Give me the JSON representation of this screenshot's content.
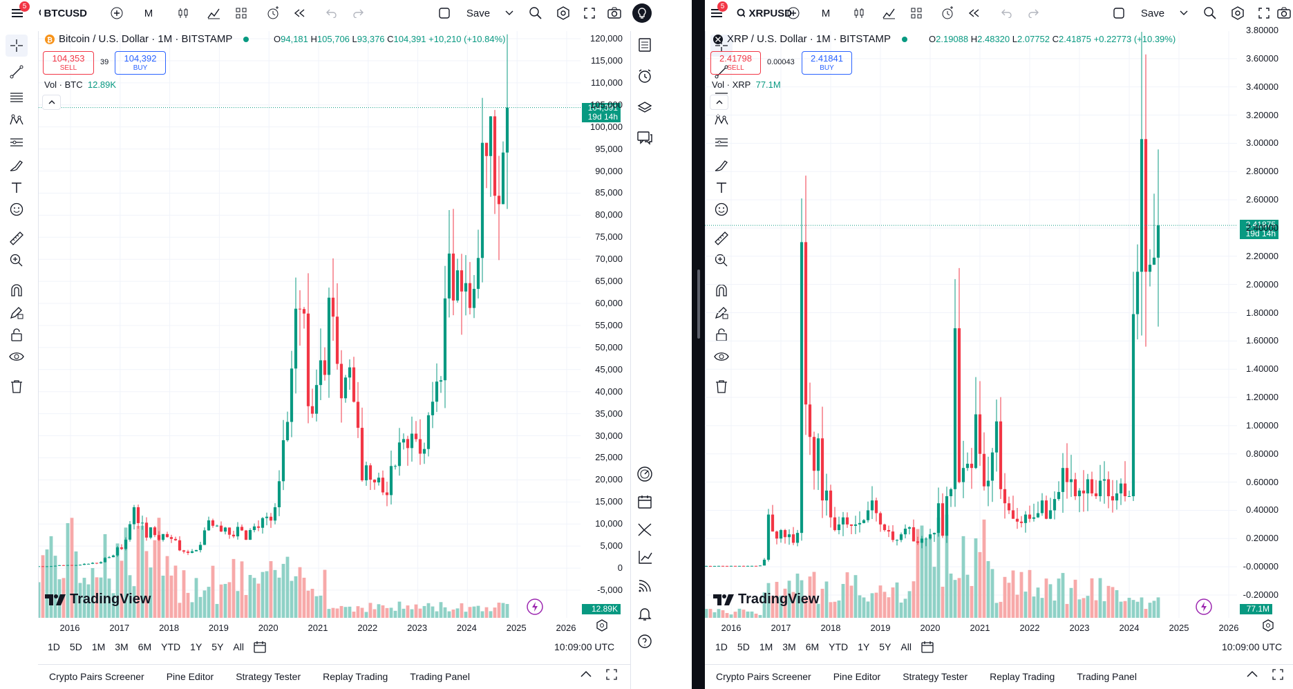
{
  "left": {
    "symbol": "BTCUSD",
    "notif_count": "5",
    "interval": "M",
    "save_label": "Save",
    "title": "Bitcoin / U.S. Dollar · 1M · BITSTAMP",
    "ohlc": {
      "o_label": "O",
      "o": "94,181",
      "h_label": "H",
      "h": "105,706",
      "l_label": "L",
      "l": "93,376",
      "c_label": "C",
      "c": "104,391",
      "change": "+10,210 (+10.84%)"
    },
    "sell": {
      "price": "104,353",
      "label": "SELL"
    },
    "spread": "39",
    "buy": {
      "price": "104,392",
      "label": "BUY"
    },
    "volume": {
      "label": "Vol · BTC",
      "value": "12.89K"
    },
    "price_axis": [
      "120,000",
      "115,000",
      "110,000",
      "105,000",
      "100,000",
      "95,000",
      "90,000",
      "85,000",
      "80,000",
      "75,000",
      "70,000",
      "65,000",
      "60,000",
      "55,000",
      "50,000",
      "45,000",
      "40,000",
      "35,000",
      "30,000",
      "25,000",
      "20,000",
      "15,000",
      "10,000",
      "5,000",
      "0",
      "-5,000"
    ],
    "last_price": "104,391",
    "countdown": "19d 14h",
    "vol_tag": "12.89K",
    "years": [
      "2016",
      "2017",
      "2018",
      "2019",
      "2020",
      "2021",
      "2022",
      "2023",
      "2024",
      "2025",
      "2026"
    ],
    "logo": "TradingView",
    "ranges": [
      "1D",
      "5D",
      "1M",
      "3M",
      "6M",
      "YTD",
      "1Y",
      "5Y",
      "All"
    ],
    "time": "10:09:00 UTC",
    "tabs": [
      "Crypto Pairs Screener",
      "Pine Editor",
      "Strategy Tester",
      "Replay Trading",
      "Trading Panel"
    ],
    "chart_data": {
      "type": "candlestick",
      "interval": "1M",
      "ylim": [
        -5000,
        120000
      ],
      "closes": [
        430,
        370,
        420,
        450,
        530,
        670,
        630,
        700,
        610,
        690,
        750,
        960,
        970,
        1190,
        1080,
        1350,
        2300,
        2480,
        2870,
        4700,
        4340,
        6450,
        9950,
        13800,
        10200,
        10300,
        6920,
        9240,
        7490,
        6400,
        7720,
        7030,
        6620,
        6310,
        4020,
        3740,
        3460,
        3810,
        4100,
        5270,
        8560,
        10820,
        9600,
        9630,
        8290,
        9200,
        7570,
        7200,
        9350,
        8540,
        6420,
        8630,
        9450,
        9140,
        11340,
        11650,
        10780,
        13800,
        19700,
        28990,
        33140,
        45240,
        58800,
        58720,
        57700,
        36700,
        35000,
        41500,
        47100,
        43800,
        61300,
        57000,
        46300,
        38500,
        43200,
        45500,
        37700,
        31800,
        19900,
        23300,
        20050,
        19430,
        20500,
        17160,
        16550,
        23140,
        23150,
        28480,
        29250,
        27210,
        30480,
        29230,
        25940,
        27000,
        34650,
        37720,
        42280,
        42580,
        61130,
        71300,
        60660,
        67500,
        62700,
        64600,
        58970,
        63300,
        70300,
        96400,
        93400,
        102400,
        84400,
        82500,
        94200,
        104391
      ],
      "x_axis_years": [
        2016,
        2017,
        2018,
        2019,
        2020,
        2021,
        2022,
        2023,
        2024,
        2025,
        2026
      ]
    }
  },
  "right": {
    "symbol": "XRPUSD",
    "notif_count": "5",
    "interval": "M",
    "save_label": "Save",
    "title": "XRP / U.S. Dollar · 1M · BITSTAMP",
    "ohlc": {
      "o_label": "O",
      "o": "2.19088",
      "h_label": "H",
      "h": "2.48320",
      "l_label": "L",
      "l": "2.07752",
      "c_label": "C",
      "c": "2.41875",
      "change": "+0.22773 (+10.39%)"
    },
    "sell": {
      "price": "2.41798",
      "label": "SELL"
    },
    "spread": "0.00043",
    "buy": {
      "price": "2.41841",
      "label": "BUY"
    },
    "volume": {
      "label": "Vol · XRP",
      "value": "77.1M"
    },
    "price_axis": [
      "3.80000",
      "3.60000",
      "3.40000",
      "3.20000",
      "3.00000",
      "2.80000",
      "2.60000",
      "2.40000",
      "2.20000",
      "2.00000",
      "1.80000",
      "1.60000",
      "1.40000",
      "1.20000",
      "1.00000",
      "0.80000",
      "0.60000",
      "0.40000",
      "0.20000",
      "-0.00000",
      "-0.20000"
    ],
    "last_price": "2.41875",
    "countdown": "19d 14h",
    "vol_tag": "77.1M",
    "years": [
      "2016",
      "2017",
      "2018",
      "2019",
      "2020",
      "2021",
      "2022",
      "2023",
      "2024",
      "2025",
      "2026"
    ],
    "logo": "TradingView",
    "ranges": [
      "1D",
      "5D",
      "1M",
      "3M",
      "6M",
      "YTD",
      "1Y",
      "5Y",
      "All"
    ],
    "time": "10:09:00 UTC",
    "tabs": [
      "Crypto Pairs Screener",
      "Pine Editor",
      "Strategy Tester",
      "Replay Trading",
      "Trading Panel"
    ],
    "chart_data": {
      "type": "candlestick",
      "interval": "1M",
      "ylim": [
        -0.2,
        3.8
      ],
      "closes": [
        0.006,
        0.0058,
        0.006,
        0.0065,
        0.0062,
        0.0061,
        0.0065,
        0.0064,
        0.0064,
        0.0063,
        0.0063,
        0.0066,
        0.0065,
        0.009,
        0.05,
        0.37,
        0.25,
        0.2,
        0.26,
        0.21,
        0.23,
        0.17,
        0.24,
        2.3,
        1.15,
        0.92,
        0.68,
        0.91,
        0.47,
        0.54,
        0.35,
        0.26,
        0.3,
        0.35,
        0.3,
        0.29,
        0.3,
        0.31,
        0.33,
        0.4,
        0.47,
        0.38,
        0.3,
        0.26,
        0.25,
        0.19,
        0.19,
        0.23,
        0.27,
        0.28,
        0.18,
        0.17,
        0.2,
        0.2,
        0.23,
        0.24,
        0.45,
        0.22,
        0.5,
        0.55,
        1.69,
        0.6,
        0.7,
        0.73,
        0.7,
        1.08,
        0.8,
        0.57,
        0.61,
        0.81,
        1.03,
        0.55,
        0.45,
        0.4,
        0.34,
        0.32,
        0.31,
        0.37,
        0.34,
        0.35,
        0.38,
        0.47,
        0.34,
        0.4,
        0.48,
        0.53,
        0.7,
        0.6,
        0.62,
        0.5,
        0.54,
        0.52,
        0.62,
        0.52,
        0.5,
        0.61,
        0.62,
        0.5,
        0.47,
        0.52,
        0.59,
        0.5,
        0.5,
        1.79,
        2.09,
        3.03,
        2.09,
        2.14,
        2.19,
        2.41875
      ],
      "x_axis_years": [
        2016,
        2017,
        2018,
        2019,
        2020,
        2021,
        2022,
        2023,
        2024,
        2025,
        2026
      ]
    }
  },
  "colors": {
    "up": "#089981",
    "down": "#f23645",
    "vol_up": "#8fd1c6",
    "vol_down": "#f7a9a9",
    "grid": "#f0f3fa",
    "accent": "#2962ff"
  },
  "icons": [
    "menu-icon",
    "search-icon",
    "plus-icon",
    "candles-icon",
    "indicators-icon",
    "templates-icon",
    "alert-icon",
    "replay-icon",
    "undo-icon",
    "redo-icon",
    "layout-icon",
    "chevron-down-icon",
    "quick-search-icon",
    "settings-icon",
    "fullscreen-icon",
    "camera-icon",
    "lightbulb-icon"
  ]
}
